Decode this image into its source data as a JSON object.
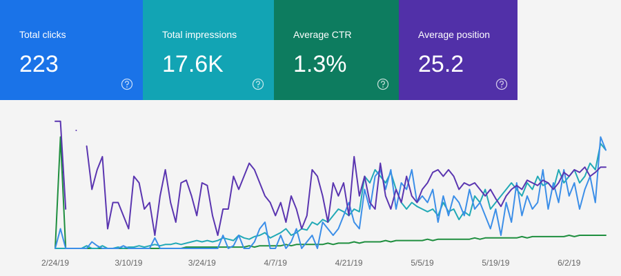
{
  "cards": [
    {
      "label": "Total clicks",
      "value": "223",
      "color": "#1a73e8"
    },
    {
      "label": "Total impressions",
      "value": "17.6K",
      "color": "#12a4b4"
    },
    {
      "label": "Average CTR",
      "value": "1.3%",
      "color": "#0d7c5f"
    },
    {
      "label": "Average position",
      "value": "25.2",
      "color": "#5130a8"
    }
  ],
  "chart_data": {
    "type": "line",
    "categories": [
      "2/24/19",
      null,
      null,
      null,
      null,
      null,
      null,
      null,
      null,
      null,
      null,
      null,
      null,
      null,
      "3/10/19",
      null,
      null,
      null,
      null,
      null,
      null,
      null,
      null,
      null,
      null,
      null,
      null,
      null,
      "3/24/19",
      null,
      null,
      null,
      null,
      null,
      null,
      null,
      null,
      null,
      null,
      null,
      null,
      null,
      "4/7/19",
      null,
      null,
      null,
      null,
      null,
      null,
      null,
      null,
      null,
      null,
      null,
      null,
      null,
      "4/21/19",
      null,
      null,
      null,
      null,
      null,
      null,
      null,
      null,
      null,
      null,
      null,
      null,
      null,
      "5/5/19",
      null,
      null,
      null,
      null,
      null,
      null,
      null,
      null,
      null,
      null,
      null,
      null,
      null,
      "5/19/19",
      null,
      null,
      null,
      null,
      null,
      null,
      null,
      null,
      null,
      null,
      null,
      null,
      null,
      "6/2/19",
      null,
      null,
      null,
      null,
      null,
      null,
      null
    ],
    "ylim": [
      0,
      100
    ],
    "series": [
      {
        "color": "#1e8e3e",
        "values": [
          0,
          85,
          0,
          0,
          0,
          0,
          0,
          0,
          0,
          0,
          0,
          0,
          0,
          0,
          0,
          0,
          0,
          0,
          0,
          0,
          0,
          0,
          0,
          0,
          0,
          1,
          1,
          1,
          1,
          1,
          1,
          1,
          1,
          1,
          1,
          1,
          1,
          2,
          1,
          2,
          2,
          2,
          2,
          2,
          3,
          2,
          3,
          3,
          3,
          3,
          3,
          3,
          4,
          3,
          4,
          4,
          4,
          5,
          4,
          5,
          5,
          5,
          5,
          6,
          5,
          6,
          6,
          6,
          6,
          6,
          6,
          7,
          6,
          7,
          7,
          7,
          7,
          7,
          7,
          7,
          8,
          7,
          8,
          8,
          8,
          8,
          8,
          8,
          8,
          9,
          8,
          9,
          9,
          9,
          9,
          9,
          9,
          9,
          10,
          9,
          10,
          10,
          10,
          10,
          10,
          10
        ]
      },
      {
        "color": "#21a9b6",
        "values": [
          0,
          0,
          0,
          0,
          0,
          0,
          2,
          0,
          0,
          2,
          0,
          0,
          1,
          0,
          1,
          1,
          2,
          1,
          2,
          3,
          2,
          3,
          3,
          4,
          3,
          4,
          5,
          6,
          5,
          6,
          5,
          6,
          8,
          7,
          6,
          10,
          8,
          7,
          9,
          10,
          12,
          8,
          10,
          12,
          15,
          10,
          12,
          15,
          14,
          20,
          18,
          22,
          20,
          25,
          30,
          28,
          25,
          30,
          28,
          55,
          50,
          60,
          55,
          50,
          58,
          45,
          35,
          30,
          35,
          32,
          30,
          28,
          30,
          25,
          35,
          28,
          30,
          22,
          28,
          25,
          40,
          35,
          45,
          30,
          35,
          40,
          45,
          50,
          45,
          40,
          50,
          45,
          55,
          48,
          50,
          45,
          60,
          50,
          55,
          60,
          50,
          55,
          65,
          60,
          80,
          75
        ]
      },
      {
        "color": "#3b8ee8",
        "values": [
          0,
          15,
          0,
          0,
          0,
          0,
          0,
          5,
          2,
          0,
          0,
          0,
          0,
          2,
          0,
          0,
          0,
          0,
          0,
          8,
          0,
          0,
          0,
          0,
          0,
          0,
          0,
          0,
          0,
          0,
          0,
          0,
          10,
          0,
          2,
          10,
          0,
          0,
          5,
          15,
          20,
          0,
          0,
          10,
          0,
          5,
          15,
          0,
          5,
          10,
          0,
          20,
          15,
          10,
          15,
          25,
          35,
          20,
          15,
          45,
          30,
          55,
          60,
          45,
          60,
          30,
          50,
          45,
          60,
          35,
          40,
          35,
          45,
          20,
          40,
          25,
          40,
          35,
          25,
          45,
          30,
          35,
          25,
          15,
          30,
          10,
          35,
          20,
          50,
          25,
          40,
          30,
          35,
          60,
          30,
          50,
          35,
          60,
          40,
          50,
          30,
          45,
          55,
          35,
          85,
          75
        ]
      },
      {
        "color": "#5a35b0",
        "values": [
          97,
          97,
          30,
          null,
          90,
          null,
          78,
          45,
          60,
          70,
          15,
          35,
          35,
          25,
          15,
          55,
          50,
          30,
          35,
          10,
          40,
          60,
          35,
          20,
          50,
          52,
          40,
          25,
          50,
          48,
          25,
          10,
          30,
          30,
          55,
          45,
          55,
          65,
          60,
          50,
          40,
          35,
          25,
          35,
          20,
          40,
          30,
          15,
          25,
          60,
          55,
          40,
          20,
          50,
          40,
          50,
          25,
          70,
          40,
          55,
          35,
          30,
          65,
          40,
          30,
          45,
          35,
          55,
          40,
          35,
          45,
          50,
          58,
          60,
          55,
          60,
          55,
          45,
          50,
          48,
          50,
          45,
          40,
          45,
          38,
          32,
          40,
          45,
          48,
          45,
          52,
          50,
          48,
          52,
          50,
          45,
          50,
          58,
          55,
          60,
          58,
          62,
          55,
          58,
          62,
          62
        ]
      }
    ]
  }
}
